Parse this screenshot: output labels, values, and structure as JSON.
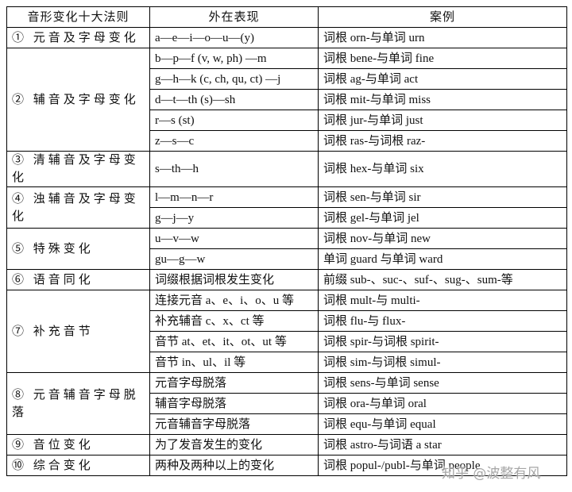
{
  "table": {
    "header": [
      "音形变化十大法则",
      "外在表现",
      "案例"
    ],
    "groups": [
      {
        "rule": "① 元音及字母变化",
        "items": [
          [
            "a—e—i—o—u—(y)",
            "词根 orn-与单词 urn"
          ]
        ]
      },
      {
        "rule": "② 辅音及字母变化",
        "items": [
          [
            "b—p—f (v, w, ph) —m",
            "词根 bene-与单词 fine"
          ],
          [
            "g—h—k (c, ch, qu, ct) —j",
            "词根 ag-与单词 act"
          ],
          [
            "d—t—th (s)—sh",
            "词根 mit-与单词 miss"
          ],
          [
            "r—s (st)",
            "词根 jur-与单词 just"
          ],
          [
            "z—s—c",
            "词根 ras-与词根 raz-"
          ]
        ]
      },
      {
        "rule": "③ 清辅音及字母变化",
        "items": [
          [
            "s—th—h",
            "词根 hex-与单词 six"
          ]
        ]
      },
      {
        "rule": "④ 浊辅音及字母变化",
        "items": [
          [
            "l—m—n—r",
            "词根 sen-与单词 sir"
          ],
          [
            "g—j—y",
            "词根 gel-与单词 jel"
          ]
        ]
      },
      {
        "rule": "⑤ 特殊变化",
        "items": [
          [
            "u—v—w",
            "词根 nov-与单词 new"
          ],
          [
            "gu—g—w",
            "单词 guard 与单词 ward"
          ]
        ]
      },
      {
        "rule": "⑥ 语音同化",
        "items": [
          [
            "词缀根据词根发生变化",
            "前缀 sub-、suc-、suf-、sug-、sum-等"
          ]
        ]
      },
      {
        "rule": "⑦ 补充音节",
        "items": [
          [
            "连接元音 a、e、i、o、u 等",
            "词根 mult-与 multi-"
          ],
          [
            "补充辅音 c、x、ct 等",
            "词根 flu-与 flux-"
          ],
          [
            "音节 at、et、it、ot、ut 等",
            "词根 spir-与词根 spirit-"
          ],
          [
            "音节 in、ul、il 等",
            "词根 sim-与词根 simul-"
          ]
        ]
      },
      {
        "rule": "⑧ 元音辅音字母脱落",
        "items": [
          [
            "元音字母脱落",
            "词根 sens-与单词 sense"
          ],
          [
            "辅音字母脱落",
            "词根 ora-与单词 oral"
          ],
          [
            "元音辅音字母脱落",
            "词根 equ-与单词 equal"
          ]
        ]
      },
      {
        "rule": "⑨ 音位变化",
        "items": [
          [
            "为了发音发生的变化",
            "词根 astro-与词语 a star"
          ]
        ]
      },
      {
        "rule": "⑩ 综合变化",
        "items": [
          [
            "两种及两种以上的变化",
            "词根 popul-/publ-与单词 people"
          ]
        ]
      }
    ]
  },
  "watermark": "知乎 @波整有风"
}
